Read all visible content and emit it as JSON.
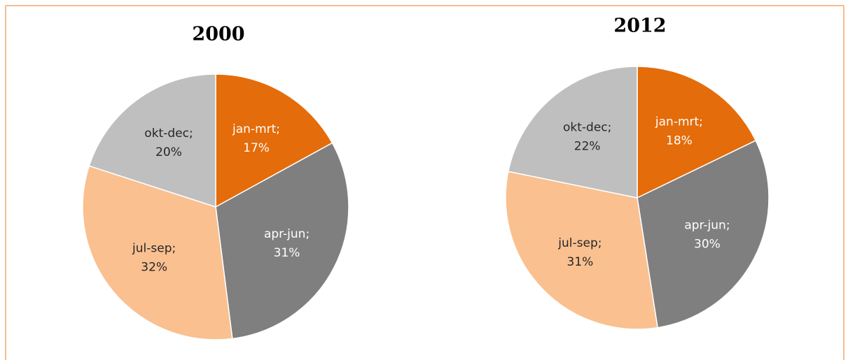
{
  "chart_data": [
    {
      "type": "pie",
      "title": "2000",
      "categories": [
        "jan-mrt;",
        "apr-jun;",
        "jul-sep;",
        "okt-dec;"
      ],
      "values": [
        17,
        31,
        32,
        20
      ],
      "value_labels": [
        "17%",
        "31%",
        "32%",
        "20%"
      ],
      "colors": [
        "#e46c0a",
        "#7f7f7f",
        "#fac090",
        "#bfbfbf"
      ]
    },
    {
      "type": "pie",
      "title": "2012",
      "categories": [
        "jan-mrt;",
        "apr-jun;",
        "jul-sep;",
        "okt-dec;"
      ],
      "values": [
        18,
        30,
        31,
        22
      ],
      "value_labels": [
        "18%",
        "30%",
        "31%",
        "22%"
      ],
      "colors": [
        "#e46c0a",
        "#7f7f7f",
        "#fac090",
        "#bfbfbf"
      ]
    }
  ]
}
